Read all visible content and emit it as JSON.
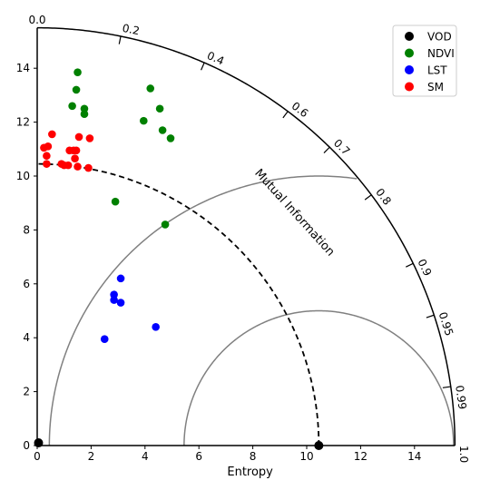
{
  "chart_data": {
    "type": "scatter",
    "subtype": "taylor-diagram",
    "xlabel": "Entropy",
    "arc_label": "Mutual Information",
    "xlim": [
      0,
      15.5
    ],
    "ylim": [
      0,
      15.5
    ],
    "x_ticks": [
      "0",
      "2",
      "4",
      "6",
      "8",
      "10",
      "12",
      "14"
    ],
    "y_ticks": [
      "0",
      "2",
      "4",
      "6",
      "8",
      "10",
      "12",
      "14"
    ],
    "corr_ticks": [
      "0.0",
      "0.2",
      "0.4",
      "0.6",
      "0.7",
      "0.8",
      "0.9",
      "0.95",
      "0.99",
      "1.0"
    ],
    "corr_values": [
      0.0,
      0.2,
      0.4,
      0.6,
      0.7,
      0.8,
      0.9,
      0.95,
      0.99,
      1.0
    ],
    "reference_value": 10.45,
    "rms_contours": [
      5,
      10
    ],
    "grid": false,
    "legend_position": "top-right",
    "series": [
      {
        "name": "VOD",
        "color": "#000000",
        "x": [
          10.45,
          0.05
        ],
        "y": [
          0.0,
          0.1
        ]
      },
      {
        "name": "NDVI",
        "color": "#008000",
        "x": [
          1.5,
          1.45,
          1.3,
          1.75,
          1.75,
          4.2,
          4.55,
          3.95,
          4.65,
          4.95,
          2.9,
          4.75
        ],
        "y": [
          13.85,
          13.2,
          12.6,
          12.5,
          12.3,
          13.25,
          12.5,
          12.05,
          11.7,
          11.4,
          9.05,
          8.2
        ]
      },
      {
        "name": "LST",
        "color": "#0000ff",
        "x": [
          3.1,
          2.85,
          2.85,
          3.1,
          4.4,
          2.5
        ],
        "y": [
          6.2,
          5.6,
          5.4,
          5.3,
          4.4,
          3.95
        ]
      },
      {
        "name": "SM",
        "color": "#ff0000",
        "x": [
          0.55,
          1.55,
          1.95,
          0.25,
          0.4,
          0.35,
          1.2,
          1.35,
          1.45,
          1.4,
          0.9,
          1.0,
          1.15,
          0.35,
          1.5,
          1.9
        ],
        "y": [
          11.55,
          11.45,
          11.4,
          11.05,
          11.1,
          10.75,
          10.95,
          10.95,
          10.95,
          10.65,
          10.45,
          10.4,
          10.4,
          10.45,
          10.35,
          10.3
        ]
      }
    ]
  }
}
